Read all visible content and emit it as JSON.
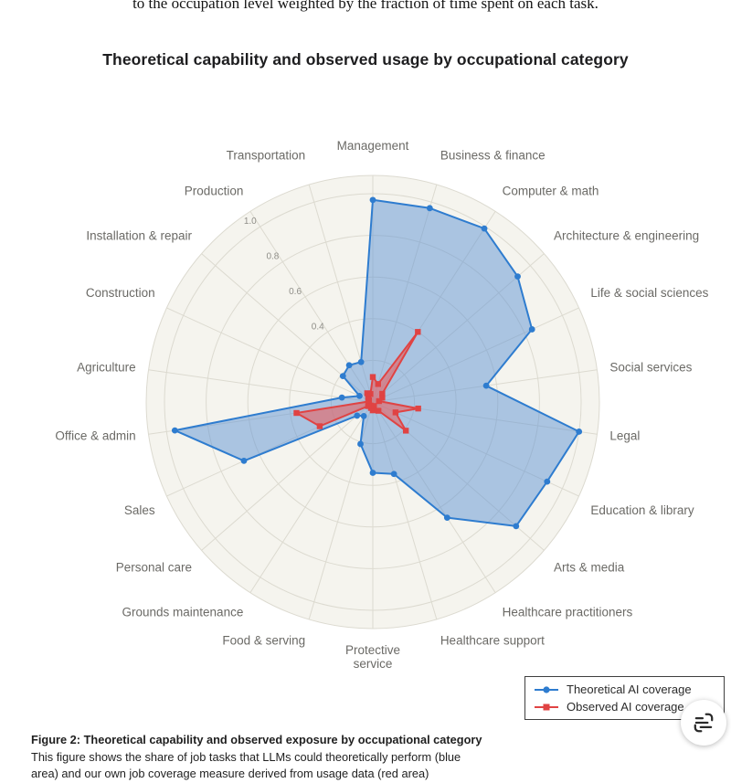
{
  "page": {
    "cropped_text_above": "to the occupation level weighted by the fraction of time spent on each task.",
    "title": "Theoretical capability and observed usage by occupational category"
  },
  "chart_data": {
    "type": "radar",
    "title": "Theoretical capability and observed usage by occupational category",
    "categories": [
      "Management",
      "Business & finance",
      "Computer & math",
      "Architecture & engineering",
      "Life & social sciences",
      "Social services",
      "Legal",
      "Education & library",
      "Arts & media",
      "Healthcare practitioners",
      "Healthcare support",
      "Protective service",
      "Food & serving",
      "Grounds maintenance",
      "Personal care",
      "Sales",
      "Office & admin",
      "Agriculture",
      "Construction",
      "Installation & repair",
      "Production",
      "Transportation"
    ],
    "series": [
      {
        "name": "Theoretical AI coverage",
        "marker": "circle",
        "color": "#2e7ccf",
        "fill": "rgba(96,148,211,0.5)",
        "values": [
          0.97,
          0.97,
          0.99,
          0.92,
          0.84,
          0.55,
          1.0,
          0.92,
          0.91,
          0.66,
          0.36,
          0.34,
          0.21,
          0.08,
          0.1,
          0.68,
          0.96,
          0.15,
          0.07,
          0.19,
          0.21,
          0.2
        ]
      },
      {
        "name": "Observed AI coverage",
        "marker": "square",
        "color": "#e04343",
        "fill": "rgba(232,96,96,0.6)",
        "values": [
          0.12,
          0.09,
          0.4,
          0.06,
          0.05,
          0.03,
          0.22,
          0.12,
          0.21,
          0.05,
          0.02,
          0.04,
          0.03,
          0.02,
          0.03,
          0.28,
          0.37,
          0.02,
          0.02,
          0.03,
          0.05,
          0.04
        ]
      }
    ],
    "radial_ticks": [
      0.4,
      0.6,
      0.8,
      1.0
    ],
    "radial_range": [
      0,
      1.09
    ],
    "radial_axis_angle_category": "Production",
    "wrapped_labels": [
      "Protective service"
    ],
    "grid": true,
    "legend_position": "bottom-right",
    "style": {
      "background": "#f5f4ee",
      "grid_color": "#dcdad0",
      "label_color": "#6b6a66",
      "tick_color": "#8f8e88"
    }
  },
  "caption": {
    "heading": "Figure 2: Theoretical capability and observed exposure by occupational category",
    "line1": "This figure shows the share of job tasks that LLMs could theoretically perform (blue",
    "line2": "area) and our own job coverage measure derived from usage data (red area)"
  },
  "floating_button": {
    "icon": "capture-text-icon"
  }
}
